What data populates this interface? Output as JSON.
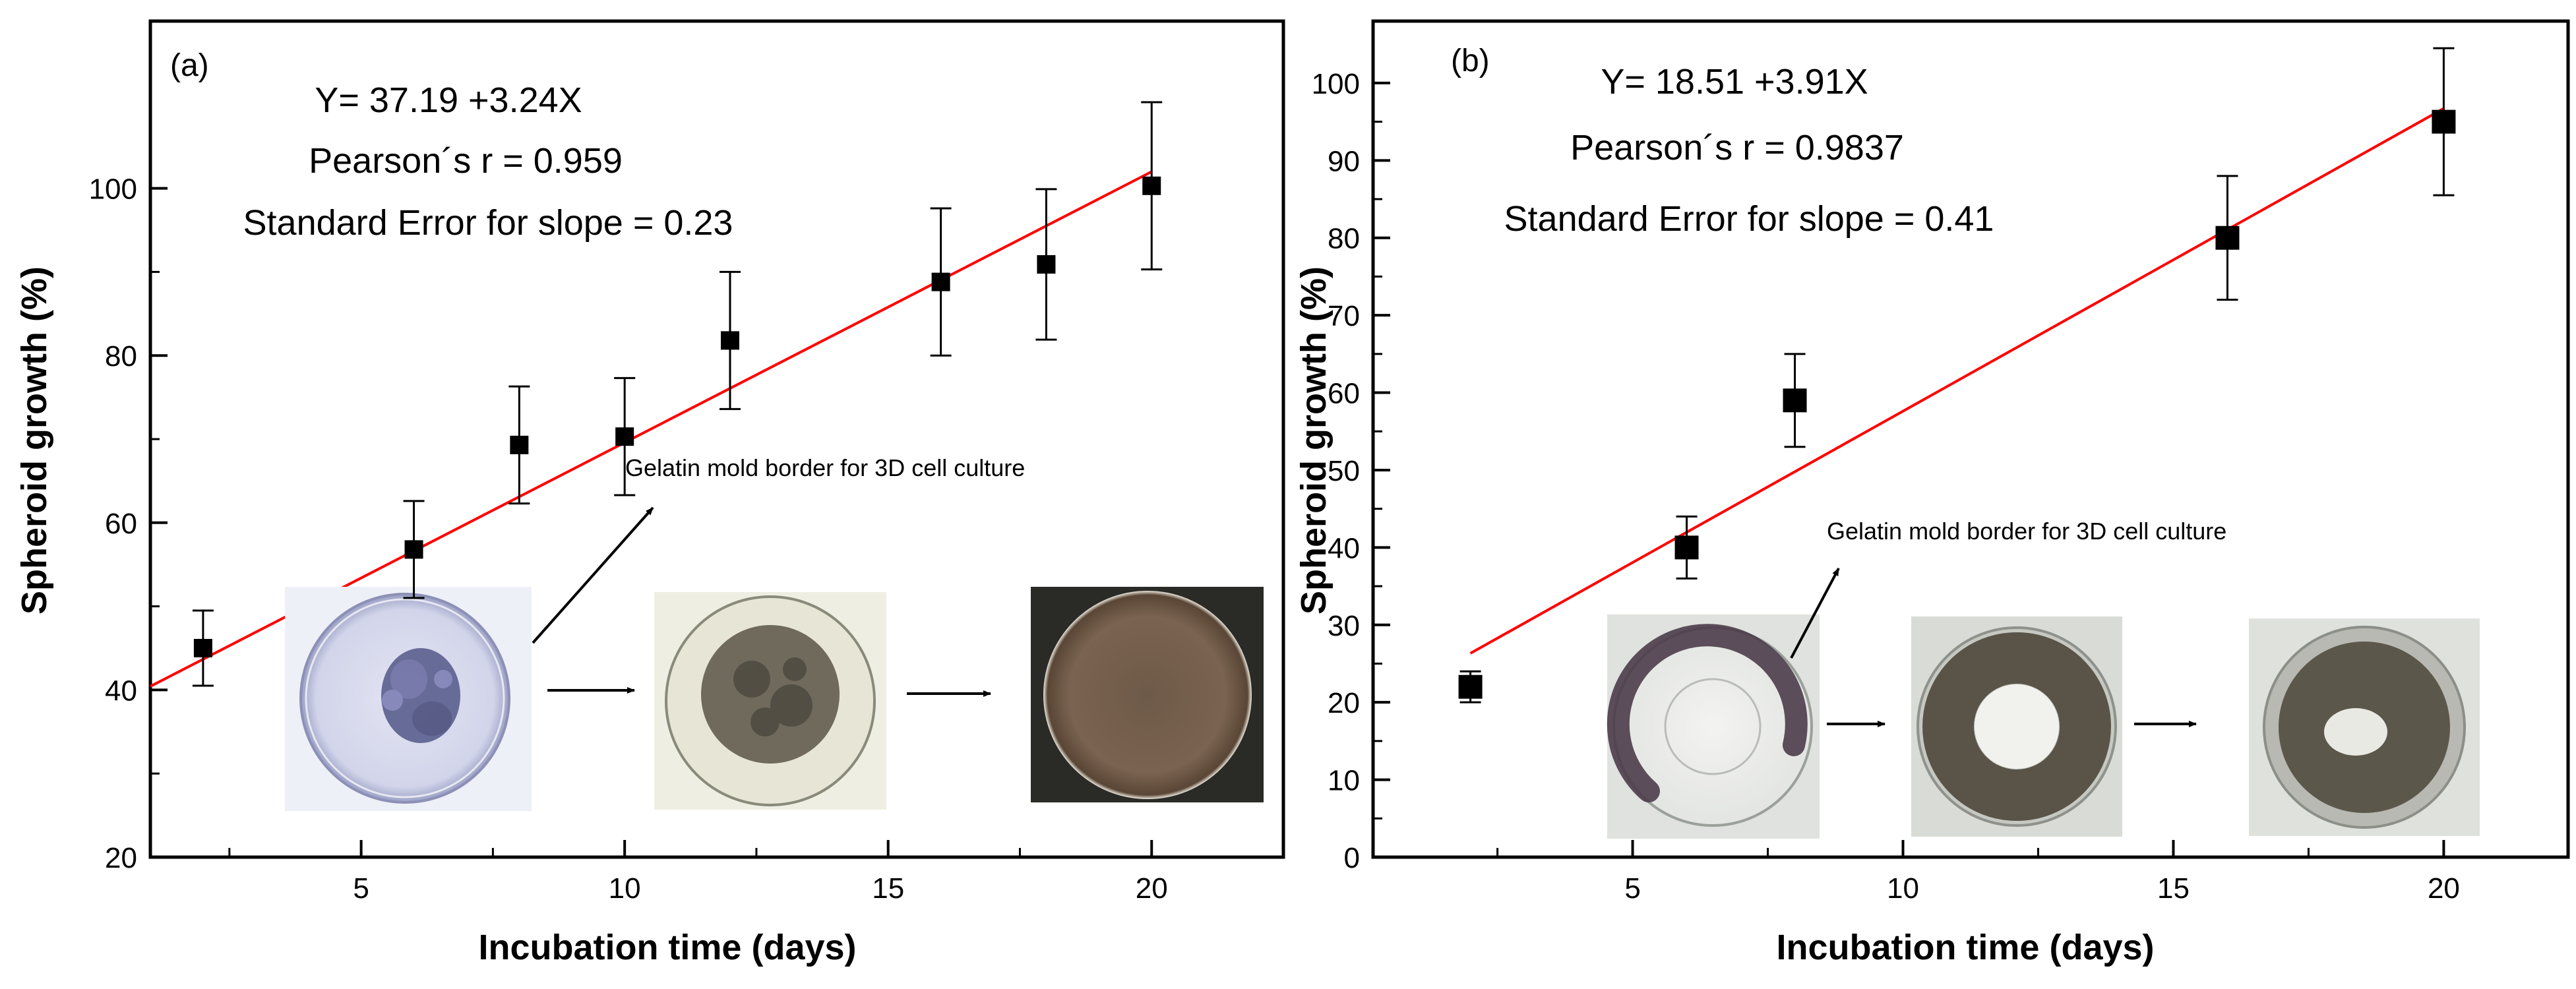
{
  "chart_data": [
    {
      "type": "scatter",
      "panel_label": "(a)",
      "xlabel": "Incubation time (days)",
      "ylabel": "Spheroid growth (%)",
      "xlim": [
        1,
        22.5
      ],
      "ylim": [
        20,
        120
      ],
      "xticks": [
        5,
        10,
        15,
        20
      ],
      "yticks": [
        20,
        40,
        60,
        80,
        100
      ],
      "x": [
        2,
        6,
        8,
        10,
        12,
        16,
        18,
        20
      ],
      "y": [
        45,
        56.8,
        69.3,
        70.3,
        81.8,
        88.8,
        90.9,
        100.3
      ],
      "err": [
        4.5,
        5.8,
        7,
        7,
        8.2,
        8.8,
        9,
        10
      ],
      "fit": {
        "intercept": 37.19,
        "slope": 3.24,
        "x_range": [
          1,
          20
        ],
        "color": "#ff0000"
      },
      "annotations": [
        "Y= 37.19 +3.24X",
        "Pearson´s r = 0.959",
        "Standard Error for slope = 0.23"
      ],
      "inset_caption": "Gelatin mold border for 3D cell culture",
      "marker_color": "#000000"
    },
    {
      "type": "scatter",
      "panel_label": "(b)",
      "xlabel": "Incubation time (days)",
      "ylabel": "Spheroid growth (%)",
      "xlim": [
        0.2,
        22.3
      ],
      "ylim": [
        0,
        108
      ],
      "xticks": [
        5,
        10,
        15,
        20
      ],
      "yticks": [
        0,
        10,
        20,
        30,
        40,
        50,
        60,
        70,
        80,
        90,
        100
      ],
      "x": [
        2,
        6,
        8,
        16,
        20
      ],
      "y": [
        22,
        40,
        59,
        80,
        95
      ],
      "err": [
        2,
        4,
        6,
        8,
        9.5
      ],
      "fit": {
        "intercept": 18.51,
        "slope": 3.91,
        "x_range": [
          2,
          20
        ],
        "color": "#ff0000"
      },
      "annotations": [
        "Y= 18.51 +3.91X",
        "Pearson´s r = 0.9837",
        "Standard Error for slope = 0.41"
      ],
      "inset_caption": "Gelatin mold border for 3D cell culture",
      "marker_color": "#000000"
    }
  ]
}
